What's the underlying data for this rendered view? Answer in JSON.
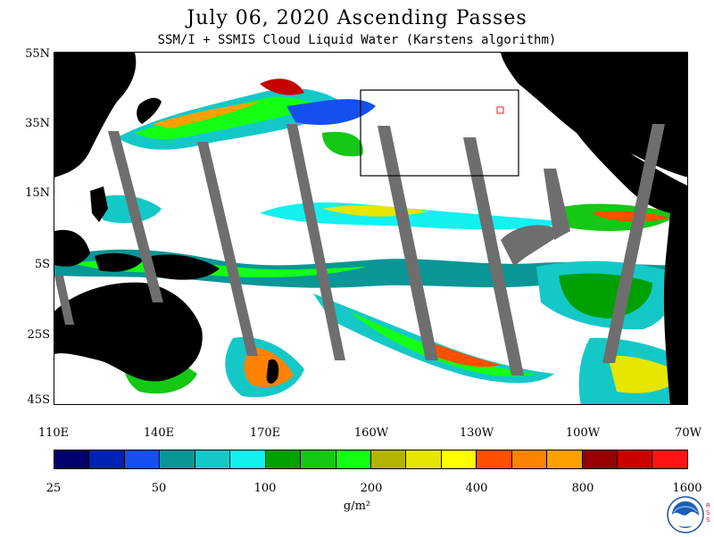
{
  "title": "July 06, 2020  Ascending Passes",
  "subtitle": "SSM/I + SSMIS Cloud Liquid Water (Karstens algorithm)",
  "lat_labels": [
    "55N",
    "35N",
    "15N",
    "5S",
    "25S",
    "45S"
  ],
  "lon_labels": [
    "110E",
    "140E",
    "170E",
    "160W",
    "130W",
    "100W",
    "70W"
  ],
  "colorbar": {
    "colors": [
      "#00006e",
      "#0022b4",
      "#1450f0",
      "#0a9696",
      "#14c8c8",
      "#14f0f0",
      "#00a000",
      "#14c814",
      "#14ff14",
      "#b4b400",
      "#e6e600",
      "#ffff00",
      "#ff5000",
      "#ff8200",
      "#ffa000",
      "#960000",
      "#c80000",
      "#ff1414"
    ],
    "tick_labels": [
      "25",
      "50",
      "100",
      "200",
      "400",
      "800",
      "1600"
    ],
    "units": "g/m²"
  },
  "map_colors": {
    "land": "#000000",
    "no_data_swath": "#6e6e6e",
    "clear": "#ffffff",
    "box_outline": "#000000"
  },
  "logo": {
    "name": "NOAA",
    "side_text": "RSS"
  }
}
